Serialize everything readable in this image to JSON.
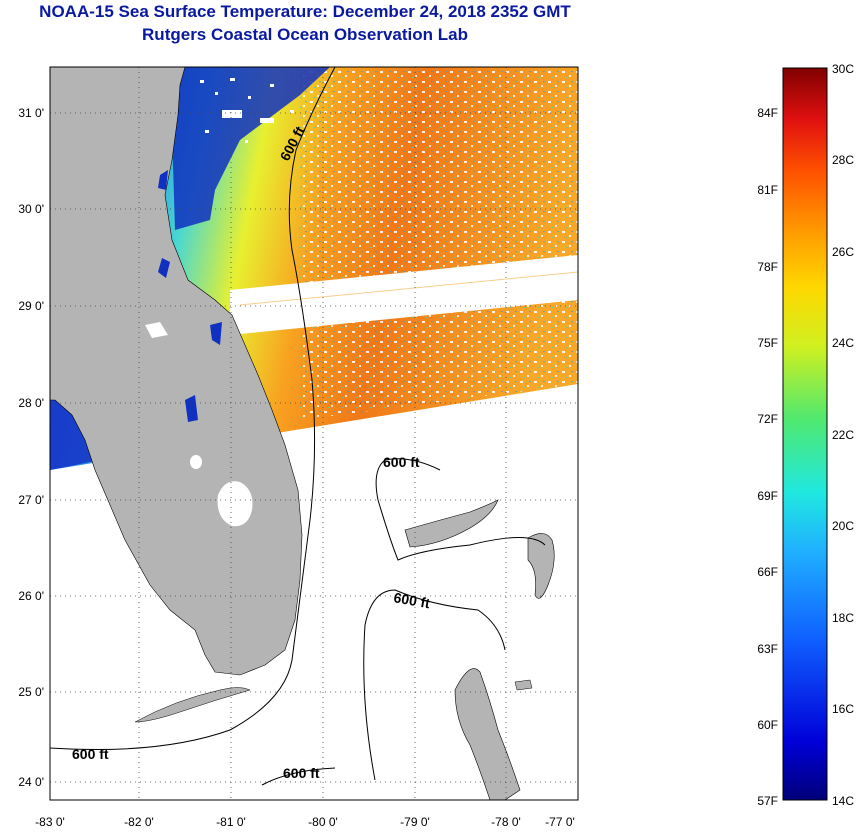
{
  "title": {
    "line1": "NOAA-15 Sea Surface Temperature:  December 24, 2018 2352 GMT",
    "line2": "Rutgers Coastal Ocean Observation Lab"
  },
  "map": {
    "lat_labels": [
      "31 0'",
      "30 0'",
      "29 0'",
      "28 0'",
      "27 0'",
      "26 0'",
      "25 0'",
      "24 0'"
    ],
    "lon_labels": [
      "-83 0'",
      "-82 0'",
      "-81 0'",
      "-80 0'",
      "-79 0'",
      "-78 0'",
      "-77 0'"
    ],
    "contour_labels": [
      "600 ft",
      "600 ft",
      "600 ft",
      "600 ft",
      "600 ft"
    ],
    "colors": {
      "land": "#b4b4b4",
      "background": "#ffffff"
    }
  },
  "colorbar": {
    "fahrenheit": [
      "84F",
      "81F",
      "78F",
      "75F",
      "72F",
      "69F",
      "66F",
      "63F",
      "60F",
      "57F"
    ],
    "celsius": [
      "30C",
      "28C",
      "26C",
      "24C",
      "22C",
      "20C",
      "18C",
      "16C",
      "14C"
    ]
  }
}
